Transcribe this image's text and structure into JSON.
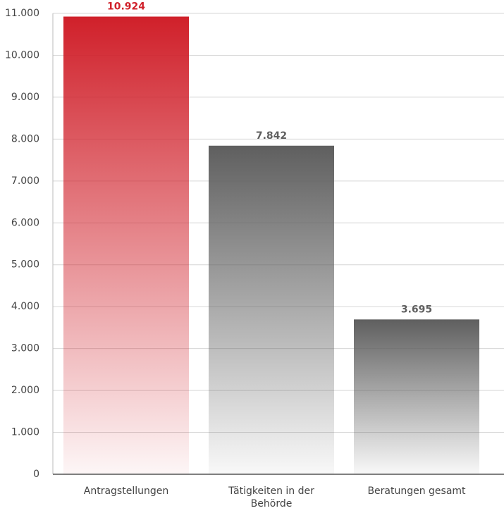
{
  "chart_data": {
    "type": "bar",
    "categories": [
      "Antragstellungen",
      "Tätigkeiten in der Behörde",
      "Beratungen gesamt"
    ],
    "values": [
      10924,
      7842,
      3695
    ],
    "value_labels": [
      "10.924",
      "7.842",
      "3.695"
    ],
    "colors": [
      "#d0202a",
      "#5f5f5f",
      "#5f5f5f"
    ],
    "ylim": [
      0,
      11000
    ],
    "yticks": [
      0,
      {
        "value": 1000,
        "label": "1.000"
      },
      {
        "value": 2000,
        "label": "2.000"
      },
      {
        "value": 3000,
        "label": "3.000"
      },
      {
        "value": 4000,
        "label": "4.000"
      },
      {
        "value": 5000,
        "label": "5.000"
      },
      {
        "value": 6000,
        "label": "6.000"
      },
      {
        "value": 7000,
        "label": "7.000"
      },
      {
        "value": 8000,
        "label": "8.000"
      },
      {
        "value": 9000,
        "label": "9.000"
      },
      {
        "value": 10000,
        "label": "10.000"
      },
      {
        "value": 11000,
        "label": "11.000"
      }
    ],
    "grid": true
  }
}
